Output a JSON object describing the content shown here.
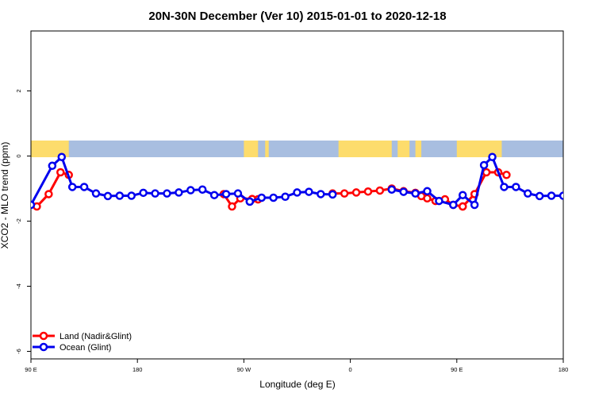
{
  "chart_data": {
    "type": "line",
    "title": "20N-30N December (Ver 10)   2015-01-01 to 2020-12-18",
    "xlabel": "Longitude (deg E)",
    "ylabel": "XCO2 - MLO trend (ppm)",
    "xlim": [
      90,
      540
    ],
    "ylim": [
      -6,
      3.8
    ],
    "x_ticks": [
      {
        "value": 90,
        "label": "90 E"
      },
      {
        "value": 180,
        "label": "180"
      },
      {
        "value": 270,
        "label": "90 W"
      },
      {
        "value": 360,
        "label": "0"
      },
      {
        "value": 450,
        "label": "90 E"
      },
      {
        "value": 540,
        "label": "180"
      }
    ],
    "y_ticks": [
      {
        "value": -6,
        "label": "-6"
      },
      {
        "value": -4,
        "label": "-4"
      },
      {
        "value": -2,
        "label": "-2"
      },
      {
        "value": 0,
        "label": "0"
      },
      {
        "value": 2,
        "label": "2"
      }
    ],
    "legend_position": "bottom-left",
    "colors": {
      "land": "#ff0000",
      "ocean": "#0000ee",
      "map_ocean": "#a8bee0",
      "map_land": "#fddc6c"
    },
    "series": [
      {
        "name": "Land (Nadir&Glint)",
        "color": "#ff0000",
        "segments": [
          {
            "x": [
              95,
              105,
              115,
              122
            ],
            "y": [
              -1.55,
              -1.17,
              -0.5,
              -0.58
            ]
          },
          {
            "x": [
              253,
              260,
              267,
              282
            ],
            "y": [
              -1.17,
              -1.55,
              -1.3,
              -1.33
            ]
          },
          {
            "x": [
              277,
              282
            ],
            "y": [
              -1.32,
              -1.33
            ]
          },
          {
            "x": [
              345,
              355,
              365,
              375,
              385,
              395,
              405,
              415,
              420,
              425,
              432,
              440,
              447,
              455
            ],
            "y": [
              -1.15,
              -1.15,
              -1.12,
              -1.09,
              -1.06,
              -1.0,
              -1.08,
              -1.13,
              -1.23,
              -1.3,
              -1.38,
              -1.33,
              -1.5,
              -1.55
            ]
          },
          {
            "x": [
              455,
              465,
              475,
              485,
              492
            ],
            "y": [
              -1.55,
              -1.17,
              -0.5,
              -0.5,
              -0.58
            ]
          }
        ]
      },
      {
        "name": "Ocean (Glint)",
        "color": "#0000ee",
        "segments": [
          {
            "x": [
              90,
              108,
              116,
              125,
              135,
              145,
              155,
              165,
              175,
              185,
              195,
              205,
              215,
              225,
              235,
              245,
              255,
              265,
              275
            ],
            "y": [
              -1.5,
              -0.3,
              -0.03,
              -0.95,
              -0.95,
              -1.15,
              -1.23,
              -1.22,
              -1.22,
              -1.13,
              -1.15,
              -1.15,
              -1.12,
              -1.05,
              -1.03,
              -1.2,
              -1.17,
              -1.15,
              -1.4
            ]
          },
          {
            "x": [
              275,
              285,
              295,
              305,
              315,
              325,
              335,
              345
            ],
            "y": [
              -1.4,
              -1.28,
              -1.28,
              -1.25,
              -1.12,
              -1.1,
              -1.17,
              -1.18
            ]
          },
          {
            "x": [
              395,
              405,
              415,
              425,
              435,
              447,
              455,
              465,
              473,
              480,
              490,
              500,
              510,
              520,
              530,
              540
            ],
            "y": [
              -1.03,
              -1.1,
              -1.15,
              -1.08,
              -1.38,
              -1.5,
              -1.2,
              -1.5,
              -0.28,
              -0.03,
              -0.95,
              -0.95,
              -1.15,
              -1.23,
              -1.22,
              -1.22
            ]
          }
        ]
      }
    ]
  }
}
